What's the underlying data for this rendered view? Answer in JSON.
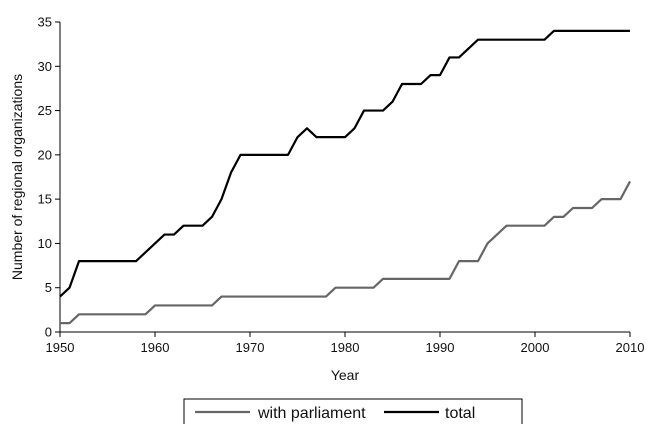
{
  "chart_data": {
    "type": "line",
    "xlabel": "Year",
    "ylabel": "Number of regional organizations",
    "xlim": [
      1950,
      2010
    ],
    "ylim": [
      0,
      35
    ],
    "x_ticks": [
      "1950",
      "1960",
      "1970",
      "1980",
      "1990",
      "2000",
      "2010"
    ],
    "y_ticks": [
      "0",
      "5",
      "10",
      "15",
      "20",
      "25",
      "30",
      "35"
    ],
    "grid": false,
    "legend_position": "bottom",
    "series": [
      {
        "name": "with parliament",
        "color": "#666666",
        "x": [
          1950,
          1951,
          1952,
          1959,
          1960,
          1966,
          1967,
          1978,
          1979,
          1983,
          1984,
          1991,
          1992,
          1994,
          1995,
          1997,
          2001,
          2002,
          2003,
          2004,
          2006,
          2007,
          2009,
          2010
        ],
        "y": [
          1,
          1,
          2,
          2,
          3,
          3,
          4,
          4,
          5,
          5,
          6,
          6,
          8,
          8,
          10,
          12,
          12,
          13,
          13,
          14,
          14,
          15,
          15,
          17
        ]
      },
      {
        "name": "total",
        "color": "#000000",
        "x": [
          1950,
          1951,
          1952,
          1958,
          1959,
          1960,
          1961,
          1962,
          1963,
          1965,
          1966,
          1967,
          1968,
          1969,
          1974,
          1975,
          1976,
          1977,
          1980,
          1981,
          1982,
          1984,
          1985,
          1986,
          1988,
          1989,
          1990,
          1991,
          1992,
          1994,
          2001,
          2002,
          2010
        ],
        "y": [
          4,
          5,
          8,
          8,
          9,
          10,
          11,
          11,
          12,
          12,
          13,
          15,
          18,
          20,
          20,
          22,
          23,
          22,
          22,
          23,
          25,
          25,
          26,
          28,
          28,
          29,
          29,
          31,
          31,
          33,
          33,
          34,
          34
        ]
      }
    ]
  }
}
